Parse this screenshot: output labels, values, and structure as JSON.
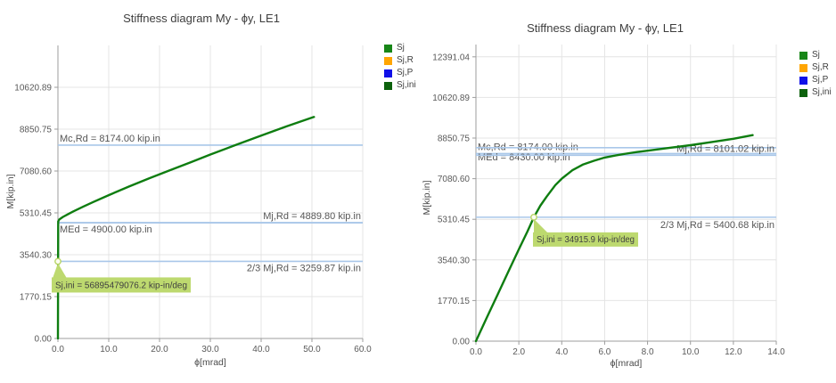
{
  "page": {
    "background": "#ffffff"
  },
  "chart_data": [
    {
      "type": "line",
      "title": "Stiffness diagram My - ϕy, LE1",
      "xlabel": "ϕ[mrad]",
      "ylabel": "M[kip.in]",
      "xlim": [
        0,
        60
      ],
      "ylim": [
        0,
        12391.04
      ],
      "grid": true,
      "legend_position": "right-top",
      "x_ticks": [
        {
          "value": 0,
          "label": "0.0"
        },
        {
          "value": 10,
          "label": "10.0"
        },
        {
          "value": 20,
          "label": "20.0"
        },
        {
          "value": 30,
          "label": "30.0"
        },
        {
          "value": 40,
          "label": "40.0"
        },
        {
          "value": 50,
          "label": "50.0"
        },
        {
          "value": 60,
          "label": "60.0"
        }
      ],
      "y_ticks": [
        {
          "value": 0,
          "label": "0.00"
        },
        {
          "value": 1770.15,
          "label": "1770.15"
        },
        {
          "value": 3540.3,
          "label": "3540.30"
        },
        {
          "value": 5310.45,
          "label": "5310.45"
        },
        {
          "value": 7080.6,
          "label": "7080.60"
        },
        {
          "value": 8850.75,
          "label": "8850.75"
        },
        {
          "value": 10620.89,
          "label": "10620.89"
        },
        {
          "value": 12391.04,
          "label": ""
        }
      ],
      "series": [
        {
          "name": "Sj",
          "color": "#0e7d10",
          "points": [
            [
              0,
              0
            ],
            [
              0.05,
              4950
            ],
            [
              0.3,
              5040
            ],
            [
              1,
              5141
            ],
            [
              2,
              5258
            ],
            [
              3,
              5369
            ],
            [
              5,
              5577
            ],
            [
              7,
              5775
            ],
            [
              10,
              6060
            ],
            [
              14,
              6424
            ],
            [
              18,
              6774
            ],
            [
              22,
              7111
            ],
            [
              26,
              7438
            ],
            [
              30,
              7779
            ],
            [
              35,
              8182
            ],
            [
              40,
              8579
            ],
            [
              45,
              8968
            ],
            [
              50.4,
              9368
            ]
          ]
        }
      ],
      "limit_lines": [
        {
          "label": "Mc,Rd = 8174.00 kip.in",
          "value": 8174.0,
          "side": "left",
          "label_dy": -4
        },
        {
          "label": "Mj,Rd = 4889.80 kip.in",
          "value": 4889.8,
          "side": "right",
          "label_dy": -4
        },
        {
          "label": "MEd = 4900.00 kip.in",
          "value": 4900.0,
          "side": "left",
          "label_dy": 11
        },
        {
          "label": "2/3 Mj,Rd = 3259.87 kip.in",
          "value": 3259.87,
          "side": "right",
          "label_dy": 11
        }
      ],
      "annotation": {
        "text": "Sj,ini = 56895479076.2 kip-in/deg",
        "marker_x": 0,
        "marker_y": 3259.87
      },
      "legend": [
        {
          "label": "Sj",
          "color": "#178617"
        },
        {
          "label": "Sj,R",
          "color": "#ffa503"
        },
        {
          "label": "Sj,P",
          "color": "#1010e8"
        },
        {
          "label": "Sj,ini",
          "color": "#0c610c"
        }
      ],
      "colors": {
        "curve": "#0e7d10",
        "limit_line": "#a9c7e9",
        "grid": "#e4e4e4",
        "axis": "#9d9d9d",
        "tick_text": "#595959",
        "label_text": "#565656",
        "annotation_bg": "#bdd96f",
        "annotation_text": "#404040",
        "marker_fill": "#fcfdf2",
        "marker_stroke": "#b8d566"
      }
    },
    {
      "type": "line",
      "title": "Stiffness diagram My - ϕy, LE1",
      "xlabel": "ϕ[mrad]",
      "ylabel": "M[kip.in]",
      "xlim": [
        0,
        14
      ],
      "ylim": [
        0,
        12927
      ],
      "grid": true,
      "legend_position": "right-top",
      "x_ticks": [
        {
          "value": 0,
          "label": "0.0"
        },
        {
          "value": 2,
          "label": "2.0"
        },
        {
          "value": 4,
          "label": "4.0"
        },
        {
          "value": 6,
          "label": "6.0"
        },
        {
          "value": 8,
          "label": "8.0"
        },
        {
          "value": 10,
          "label": "10.0"
        },
        {
          "value": 12,
          "label": "12.0"
        },
        {
          "value": 14,
          "label": "14.0"
        }
      ],
      "y_ticks": [
        {
          "value": 0,
          "label": "0.00"
        },
        {
          "value": 1770.15,
          "label": "1770.15"
        },
        {
          "value": 3540.3,
          "label": "3540.30"
        },
        {
          "value": 5310.45,
          "label": "5310.45"
        },
        {
          "value": 7080.6,
          "label": "7080.60"
        },
        {
          "value": 8850.75,
          "label": "8850.75"
        },
        {
          "value": 10620.89,
          "label": "10620.89"
        },
        {
          "value": 12391.04,
          "label": "12391.04"
        }
      ],
      "series": [
        {
          "name": "Sj",
          "color": "#0e7d10",
          "points": [
            [
              0,
              0
            ],
            [
              0.5,
              1010
            ],
            [
              1,
              2010
            ],
            [
              1.5,
              3010
            ],
            [
              2,
              4000
            ],
            [
              2.4,
              4780
            ],
            [
              2.7,
              5400
            ],
            [
              3,
              5900
            ],
            [
              3.3,
              6300
            ],
            [
              3.7,
              6800
            ],
            [
              4,
              7080
            ],
            [
              4.5,
              7450
            ],
            [
              5,
              7700
            ],
            [
              5.5,
              7860
            ],
            [
              6,
              8000
            ],
            [
              6.5,
              8090
            ],
            [
              7,
              8170
            ],
            [
              7.5,
              8240
            ],
            [
              8,
              8300
            ],
            [
              9,
              8420
            ],
            [
              10,
              8540
            ],
            [
              11,
              8680
            ],
            [
              12,
              8820
            ],
            [
              12.9,
              8980
            ]
          ]
        }
      ],
      "limit_lines": [
        {
          "label": "Mc,Rd = 8174.00 kip.in",
          "value": 8174.0,
          "side": "left",
          "label_dy": -4
        },
        {
          "label": "MEd = 8430.00 kip.in",
          "value": 8430.0,
          "side": "left",
          "label_dy": 14
        },
        {
          "label": "Mj,Rd = 8101.02 kip.in",
          "value": 8101.02,
          "side": "right",
          "label_dy": -4
        },
        {
          "label": "2/3 Mj,Rd = 5400.68 kip.in",
          "value": 5400.68,
          "side": "right",
          "label_dy": 12
        }
      ],
      "annotation": {
        "text": "Sj,ini = 34915.9 kip-in/deg",
        "marker_x": 2.7,
        "marker_y": 5400.68
      },
      "legend": [
        {
          "label": "Sj",
          "color": "#178617"
        },
        {
          "label": "Sj,R",
          "color": "#ffa503"
        },
        {
          "label": "Sj,P",
          "color": "#1010e8"
        },
        {
          "label": "Sj,ini",
          "color": "#0c610c"
        }
      ],
      "colors": {
        "curve": "#0e7d10",
        "limit_line": "#a9c7e9",
        "grid": "#e4e4e4",
        "axis": "#9d9d9d",
        "tick_text": "#595959",
        "label_text": "#565656",
        "annotation_bg": "#bdd96f",
        "annotation_text": "#404040",
        "marker_fill": "#fcfdf2",
        "marker_stroke": "#b8d566"
      }
    }
  ]
}
